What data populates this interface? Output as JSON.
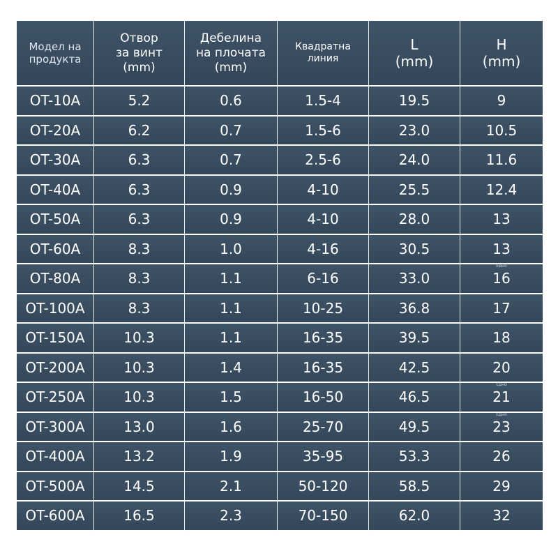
{
  "columns": [
    {
      "lines": [
        "Модел на",
        "продукта"
      ]
    },
    {
      "lines": [
        "Отвор",
        "за винт",
        "(mm)"
      ]
    },
    {
      "lines": [
        "Дебелина",
        "на плочата",
        "(mm)"
      ]
    },
    {
      "lines": [
        "Квадратна",
        "линия"
      ]
    },
    {
      "lines": [
        "L",
        "(mm)"
      ]
    },
    {
      "lines": [
        "H",
        "(mm)"
      ]
    }
  ],
  "rows": [
    {
      "model": "OT-10A",
      "hole": "5.2",
      "thickness": "0.6",
      "line": "1.5-4",
      "l": "19.5",
      "h": "9",
      "note": ""
    },
    {
      "model": "OT-20A",
      "hole": "6.2",
      "thickness": "0.7",
      "line": "1.5-6",
      "l": "23.0",
      "h": "10.5",
      "note": ""
    },
    {
      "model": "OT-30A",
      "hole": "6.3",
      "thickness": "0.7",
      "line": "2.5-6",
      "l": "24.0",
      "h": "11.6",
      "note": ""
    },
    {
      "model": "OT-40A",
      "hole": "6.3",
      "thickness": "0.9",
      "line": "4-10",
      "l": "25.5",
      "h": "12.4",
      "note": ""
    },
    {
      "model": "OT-50A",
      "hole": "6.3",
      "thickness": "0.9",
      "line": "4-10",
      "l": "28.0",
      "h": "13",
      "note": ""
    },
    {
      "model": "OT-60A",
      "hole": "8.3",
      "thickness": "1.0",
      "line": "4-16",
      "l": "30.5",
      "h": "13",
      "note": ""
    },
    {
      "model": "OT-80A",
      "hole": "8.3",
      "thickness": "1.1",
      "line": "6-16",
      "l": "33.0",
      "h": "16",
      "note": "Едно"
    },
    {
      "model": "OT-100A",
      "hole": "8.3",
      "thickness": "1.1",
      "line": "10-25",
      "l": "36.8",
      "h": "17",
      "note": ""
    },
    {
      "model": "OT-150A",
      "hole": "10.3",
      "thickness": "1.1",
      "line": "16-35",
      "l": "39.5",
      "h": "18",
      "note": ""
    },
    {
      "model": "OT-200A",
      "hole": "10.3",
      "thickness": "1.4",
      "line": "16-35",
      "l": "42.5",
      "h": "20",
      "note": ""
    },
    {
      "model": "OT-250A",
      "hole": "10.3",
      "thickness": "1.5",
      "line": "16-50",
      "l": "46.5",
      "h": "21",
      "note": "Едно"
    },
    {
      "model": "OT-300A",
      "hole": "13.0",
      "thickness": "1.6",
      "line": "25-70",
      "l": "49.5",
      "h": "23",
      "note": "Едно"
    },
    {
      "model": "OT-400A",
      "hole": "13.2",
      "thickness": "1.9",
      "line": "35-95",
      "l": "53.3",
      "h": "26",
      "note": ""
    },
    {
      "model": "OT-500A",
      "hole": "14.5",
      "thickness": "2.1",
      "line": "50-120",
      "l": "58.5",
      "h": "29",
      "note": ""
    },
    {
      "model": "OT-600A",
      "hole": "16.5",
      "thickness": "2.3",
      "line": "70-150",
      "l": "62.0",
      "h": "32",
      "note": ""
    }
  ]
}
